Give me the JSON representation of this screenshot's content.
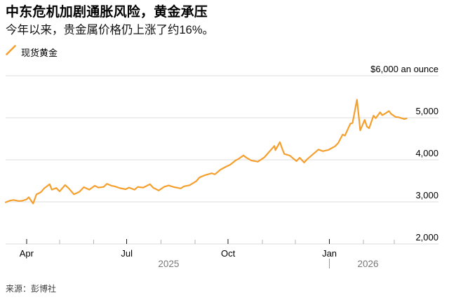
{
  "header": {
    "title": "中东危机加剧通胀风险，黄金承压",
    "subtitle": "今年以来，贵金属价格仍上涨了约16%。"
  },
  "legend": {
    "items": [
      {
        "label": "现货黄金",
        "marker": "diagonal-line-icon",
        "color": "#F5A02E"
      }
    ]
  },
  "source": {
    "label": "来源：彭博社"
  },
  "colors": {
    "line": "#F5A02E",
    "grid": "#DCDCDC",
    "tick_major": "#1a1a1a",
    "tick_minor": "#b3b3b3",
    "axis_text": "#000000",
    "year_text": "#787878",
    "year_divider": "#9a9a9a",
    "source_text": "#3d3d3d"
  },
  "chart_data": {
    "type": "line",
    "title": "中东危机加剧通胀风险，黄金承压",
    "subtitle": "今年以来，贵金属价格仍上涨了约16%。",
    "legend_position": "top-left",
    "grid": "horizontal",
    "y_axis": {
      "min": 2000,
      "max": 6000,
      "ticks": [
        {
          "value": 6000,
          "label": "$6,000 an ounce"
        },
        {
          "value": 5000,
          "label": "5,000"
        },
        {
          "value": 4000,
          "label": "4,000"
        },
        {
          "value": 3000,
          "label": "3,000"
        },
        {
          "value": 2000,
          "label": "2,000"
        }
      ]
    },
    "x_axis": {
      "start": "2025-03-13",
      "end": "2026-04-10",
      "ticks": [
        {
          "date": "2025-04-01",
          "label": "Apr",
          "major": true
        },
        {
          "date": "2025-05-01",
          "label": "",
          "major": false
        },
        {
          "date": "2025-06-01",
          "label": "",
          "major": false
        },
        {
          "date": "2025-07-01",
          "label": "Jul",
          "major": true
        },
        {
          "date": "2025-08-01",
          "label": "",
          "major": false
        },
        {
          "date": "2025-09-01",
          "label": "",
          "major": false
        },
        {
          "date": "2025-10-01",
          "label": "Oct",
          "major": true
        },
        {
          "date": "2025-11-01",
          "label": "",
          "major": false
        },
        {
          "date": "2025-12-01",
          "label": "",
          "major": false
        },
        {
          "date": "2026-01-01",
          "label": "Jan",
          "major": true
        },
        {
          "date": "2026-02-01",
          "label": "",
          "major": false
        },
        {
          "date": "2026-03-01",
          "label": "",
          "major": false
        }
      ],
      "year_labels": [
        {
          "label": "2025",
          "center_date": "2025-08-08",
          "divider_date": null
        },
        {
          "label": "2026",
          "center_date": "2026-02-05",
          "divider_date": "2026-01-01"
        }
      ]
    },
    "series": [
      {
        "name": "现货黄金",
        "color": "#F5A02E",
        "points": [
          [
            "2025-03-13",
            2990
          ],
          [
            "2025-03-17",
            3030
          ],
          [
            "2025-03-20",
            3045
          ],
          [
            "2025-03-25",
            3020
          ],
          [
            "2025-03-28",
            3025
          ],
          [
            "2025-04-01",
            3060
          ],
          [
            "2025-04-03",
            3110
          ],
          [
            "2025-04-07",
            2960
          ],
          [
            "2025-04-10",
            3180
          ],
          [
            "2025-04-14",
            3230
          ],
          [
            "2025-04-17",
            3320
          ],
          [
            "2025-04-22",
            3420
          ],
          [
            "2025-04-24",
            3290
          ],
          [
            "2025-04-28",
            3330
          ],
          [
            "2025-05-01",
            3250
          ],
          [
            "2025-05-06",
            3400
          ],
          [
            "2025-05-09",
            3330
          ],
          [
            "2025-05-14",
            3180
          ],
          [
            "2025-05-19",
            3240
          ],
          [
            "2025-05-23",
            3350
          ],
          [
            "2025-05-28",
            3290
          ],
          [
            "2025-06-02",
            3385
          ],
          [
            "2025-06-05",
            3340
          ],
          [
            "2025-06-10",
            3355
          ],
          [
            "2025-06-13",
            3430
          ],
          [
            "2025-06-17",
            3385
          ],
          [
            "2025-06-20",
            3370
          ],
          [
            "2025-06-25",
            3325
          ],
          [
            "2025-06-30",
            3300
          ],
          [
            "2025-07-03",
            3340
          ],
          [
            "2025-07-08",
            3290
          ],
          [
            "2025-07-11",
            3355
          ],
          [
            "2025-07-16",
            3340
          ],
          [
            "2025-07-22",
            3420
          ],
          [
            "2025-07-25",
            3335
          ],
          [
            "2025-07-30",
            3270
          ],
          [
            "2025-08-04",
            3360
          ],
          [
            "2025-08-08",
            3390
          ],
          [
            "2025-08-13",
            3350
          ],
          [
            "2025-08-19",
            3320
          ],
          [
            "2025-08-22",
            3370
          ],
          [
            "2025-08-27",
            3395
          ],
          [
            "2025-09-02",
            3490
          ],
          [
            "2025-09-05",
            3580
          ],
          [
            "2025-09-10",
            3635
          ],
          [
            "2025-09-16",
            3680
          ],
          [
            "2025-09-19",
            3655
          ],
          [
            "2025-09-24",
            3765
          ],
          [
            "2025-09-29",
            3835
          ],
          [
            "2025-10-03",
            3885
          ],
          [
            "2025-10-08",
            3990
          ],
          [
            "2025-10-10",
            4015
          ],
          [
            "2025-10-15",
            4105
          ],
          [
            "2025-10-17",
            4060
          ],
          [
            "2025-10-22",
            3985
          ],
          [
            "2025-10-28",
            3955
          ],
          [
            "2025-11-03",
            4060
          ],
          [
            "2025-11-07",
            4180
          ],
          [
            "2025-11-12",
            4330
          ],
          [
            "2025-11-13",
            4230
          ],
          [
            "2025-11-17",
            4420
          ],
          [
            "2025-11-19",
            4270
          ],
          [
            "2025-11-21",
            4140
          ],
          [
            "2025-11-26",
            4100
          ],
          [
            "2025-12-02",
            3970
          ],
          [
            "2025-12-05",
            4050
          ],
          [
            "2025-12-09",
            3935
          ],
          [
            "2025-12-12",
            4020
          ],
          [
            "2025-12-17",
            4130
          ],
          [
            "2025-12-22",
            4245
          ],
          [
            "2025-12-26",
            4205
          ],
          [
            "2025-12-31",
            4235
          ],
          [
            "2026-01-06",
            4320
          ],
          [
            "2026-01-09",
            4400
          ],
          [
            "2026-01-13",
            4600
          ],
          [
            "2026-01-15",
            4575
          ],
          [
            "2026-01-20",
            4860
          ],
          [
            "2026-01-22",
            4875
          ],
          [
            "2026-01-26",
            5430
          ],
          [
            "2026-01-28",
            4940
          ],
          [
            "2026-01-29",
            4700
          ],
          [
            "2026-02-02",
            4950
          ],
          [
            "2026-02-04",
            4790
          ],
          [
            "2026-02-06",
            4750
          ],
          [
            "2026-02-10",
            5050
          ],
          [
            "2026-02-12",
            4990
          ],
          [
            "2026-02-16",
            5130
          ],
          [
            "2026-02-18",
            5060
          ],
          [
            "2026-02-20",
            5090
          ],
          [
            "2026-02-24",
            5160
          ],
          [
            "2026-02-26",
            5090
          ],
          [
            "2026-03-02",
            5020
          ],
          [
            "2026-03-05",
            5010
          ],
          [
            "2026-03-10",
            4970
          ],
          [
            "2026-03-12",
            4985
          ]
        ]
      }
    ]
  }
}
